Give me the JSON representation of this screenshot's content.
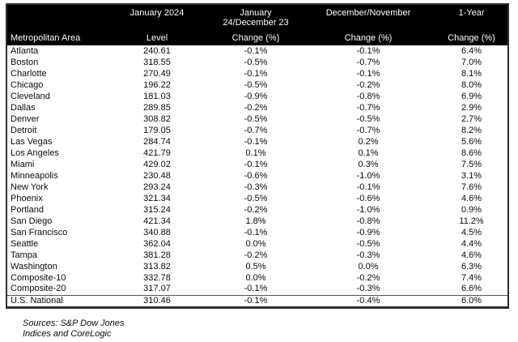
{
  "colors": {
    "header_bg": "#000000",
    "header_fg": "#ffffff",
    "border": "#2e2e2e",
    "text": "#0a0a0a"
  },
  "table": {
    "header": {
      "columns": [
        {
          "top": "",
          "top2": "",
          "bottom": "Metropolitan Area"
        },
        {
          "top": "January 2024",
          "top2": "",
          "bottom": "Level"
        },
        {
          "top": "January",
          "top2": "24/December 23",
          "bottom": "Change (%)"
        },
        {
          "top": "December/November",
          "top2": "",
          "bottom": "Change (%)"
        },
        {
          "top": "1-Year",
          "top2": "",
          "bottom": "Change (%)"
        }
      ]
    },
    "rows": [
      {
        "area": "Atlanta",
        "level": "240.61",
        "mom": "-0.1%",
        "prev_mom": "-0.1%",
        "yoy": "6.4%"
      },
      {
        "area": "Boston",
        "level": "318.55",
        "mom": "-0.5%",
        "prev_mom": "-0.7%",
        "yoy": "7.0%"
      },
      {
        "area": "Charlotte",
        "level": "270.49",
        "mom": "-0.1%",
        "prev_mom": "-0.1%",
        "yoy": "8.1%"
      },
      {
        "area": "Chicago",
        "level": "196.22",
        "mom": "-0.5%",
        "prev_mom": "-0.2%",
        "yoy": "8.0%"
      },
      {
        "area": "Cleveland",
        "level": "181.03",
        "mom": "-0.9%",
        "prev_mom": "-0.8%",
        "yoy": "6.9%"
      },
      {
        "area": "Dallas",
        "level": "289.85",
        "mom": "-0.2%",
        "prev_mom": "-0.7%",
        "yoy": "2.9%"
      },
      {
        "area": "Denver",
        "level": "308.82",
        "mom": "-0.5%",
        "prev_mom": "-0.5%",
        "yoy": "2.7%"
      },
      {
        "area": "Detroit",
        "level": "179.05",
        "mom": "-0.7%",
        "prev_mom": "-0.7%",
        "yoy": "8.2%"
      },
      {
        "area": "Las Vegas",
        "level": "284.74",
        "mom": "-0.1%",
        "prev_mom": "0.2%",
        "yoy": "5.6%"
      },
      {
        "area": "Los Angeles",
        "level": "421.79",
        "mom": "0.1%",
        "prev_mom": "0.1%",
        "yoy": "8.6%"
      },
      {
        "area": "Miami",
        "level": "429.02",
        "mom": "-0.1%",
        "prev_mom": "0.3%",
        "yoy": "7.5%"
      },
      {
        "area": "Minneapolis",
        "level": "230.48",
        "mom": "-0.6%",
        "prev_mom": "-1.0%",
        "yoy": "3.1%"
      },
      {
        "area": "New York",
        "level": "293.24",
        "mom": "-0.3%",
        "prev_mom": "-0.1%",
        "yoy": "7.6%"
      },
      {
        "area": "Phoenix",
        "level": "321.34",
        "mom": "-0.5%",
        "prev_mom": "-0.6%",
        "yoy": "4.6%"
      },
      {
        "area": "Portland",
        "level": "315.24",
        "mom": "-0.2%",
        "prev_mom": "-1.0%",
        "yoy": "0.9%"
      },
      {
        "area": "San Diego",
        "level": "421.34",
        "mom": "1.8%",
        "prev_mom": "-0.8%",
        "yoy": "11.2%"
      },
      {
        "area": "San Francisco",
        "level": "340.88",
        "mom": "-0.1%",
        "prev_mom": "-0.9%",
        "yoy": "4.5%"
      },
      {
        "area": "Seattle",
        "level": "362.04",
        "mom": "0.0%",
        "prev_mom": "-0.5%",
        "yoy": "4.4%"
      },
      {
        "area": "Tampa",
        "level": "381.28",
        "mom": "-0.2%",
        "prev_mom": "-0.3%",
        "yoy": "4.6%"
      },
      {
        "area": "Washington",
        "level": "313.82",
        "mom": "0.5%",
        "prev_mom": "0.0%",
        "yoy": "6.3%"
      },
      {
        "area": "Composite-10",
        "level": "332.78",
        "mom": "0.0%",
        "prev_mom": "-0.2%",
        "yoy": "7.4%"
      },
      {
        "area": "Composite-20",
        "level": "317.07",
        "mom": "-0.1%",
        "prev_mom": "-0.3%",
        "yoy": "6.6%"
      },
      {
        "area": "U.S. National",
        "level": "310.46",
        "mom": "-0.1%",
        "prev_mom": "-0.4%",
        "yoy": "6.0%"
      }
    ]
  },
  "footer": {
    "line1": "Sources: S&P Dow Jones",
    "line2": "Indices and CoreLogic"
  }
}
